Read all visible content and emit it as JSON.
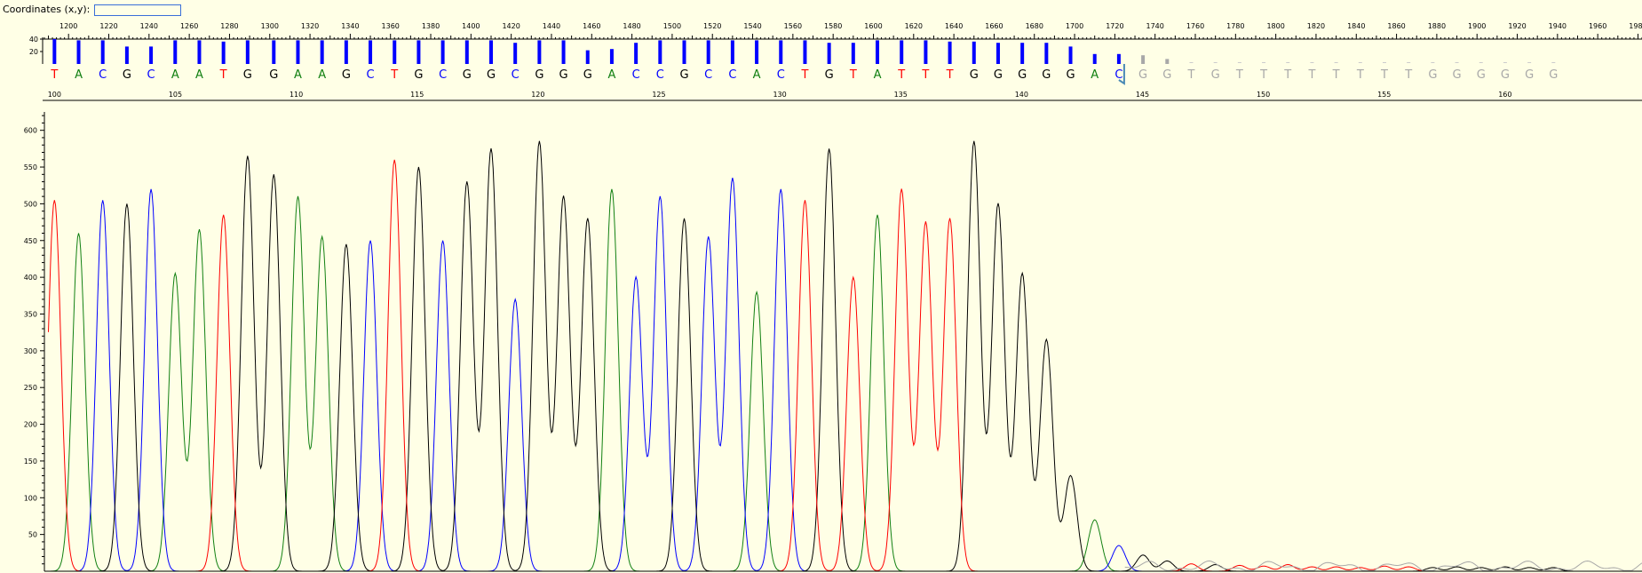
{
  "coordinates": {
    "label": "Coordinates (x,y):",
    "value": ""
  },
  "chart_data": {
    "type": "line",
    "title": "",
    "scan_axis": {
      "range": [
        1188,
        1982
      ],
      "labels_every": 20
    },
    "position_axis": {
      "range": [
        99.5,
        164
      ],
      "labels": [
        100,
        105,
        110,
        115,
        120,
        125,
        130,
        135,
        140,
        145,
        150,
        155,
        160
      ]
    },
    "ylim": [
      0,
      625
    ],
    "yticks": [
      50,
      100,
      150,
      200,
      250,
      300,
      350,
      400,
      450,
      500,
      550,
      600
    ],
    "quality_ticks": [
      20,
      40
    ],
    "colors": {
      "A": "#128012",
      "C": "#0000ff",
      "G": "#000000",
      "T": "#ff0000",
      "low": "#a8a8a8",
      "qual": "#0000ff",
      "cursor": "#4a8ab5"
    },
    "bases": [
      "T",
      "A",
      "C",
      "G",
      "C",
      "A",
      "A",
      "T",
      "G",
      "G",
      "A",
      "A",
      "G",
      "C",
      "T",
      "G",
      "C",
      "G",
      "G",
      "C",
      "G",
      "G",
      "G",
      "A",
      "C",
      "C",
      "G",
      "C",
      "C",
      "A",
      "C",
      "T",
      "G",
      "T",
      "A",
      "T",
      "T",
      "T",
      "G",
      "G",
      "G",
      "G",
      "G",
      "A",
      "C",
      "G",
      "G",
      "T",
      "G",
      "T",
      "T",
      "T",
      "T",
      "T",
      "T",
      "T",
      "T",
      "G",
      "G",
      "G",
      "G",
      "G",
      "G"
    ],
    "base_scan": [
      1193,
      1205,
      1217,
      1229,
      1241,
      1253,
      1265,
      1277,
      1289,
      1302,
      1314,
      1326,
      1338,
      1350,
      1362,
      1374,
      1386,
      1398,
      1410,
      1422,
      1434,
      1446,
      1458,
      1470,
      1482,
      1494,
      1506,
      1518,
      1530,
      1542,
      1554,
      1566,
      1578,
      1590,
      1602,
      1614,
      1626,
      1638,
      1650,
      1662,
      1674,
      1686,
      1698,
      1710,
      1722,
      1734,
      1746,
      1758,
      1770,
      1782,
      1794,
      1806,
      1818,
      1830,
      1842,
      1854,
      1866,
      1878,
      1890,
      1902,
      1914,
      1926,
      1938
    ],
    "peak_heights": [
      505,
      460,
      505,
      500,
      520,
      405,
      465,
      485,
      565,
      540,
      510,
      455,
      445,
      450,
      560,
      550,
      450,
      530,
      575,
      370,
      585,
      510,
      480,
      520,
      400,
      510,
      480,
      455,
      535,
      380,
      520,
      505,
      575,
      400,
      485,
      520,
      475,
      480,
      585,
      500,
      405,
      315,
      130,
      70,
      35,
      22,
      14,
      10,
      9,
      8,
      7,
      9,
      6,
      6,
      5,
      7,
      6,
      5,
      6,
      5,
      6,
      5,
      5
    ],
    "quality": [
      40,
      38,
      38,
      28,
      28,
      38,
      38,
      36,
      38,
      38,
      38,
      38,
      38,
      38,
      38,
      38,
      38,
      38,
      38,
      34,
      38,
      38,
      22,
      24,
      34,
      38,
      38,
      38,
      38,
      38,
      38,
      38,
      34,
      34,
      38,
      38,
      38,
      36,
      36,
      34,
      34,
      34,
      28,
      16,
      16,
      14,
      8
    ],
    "called_count": 45,
    "cursor_at_base": 45
  }
}
